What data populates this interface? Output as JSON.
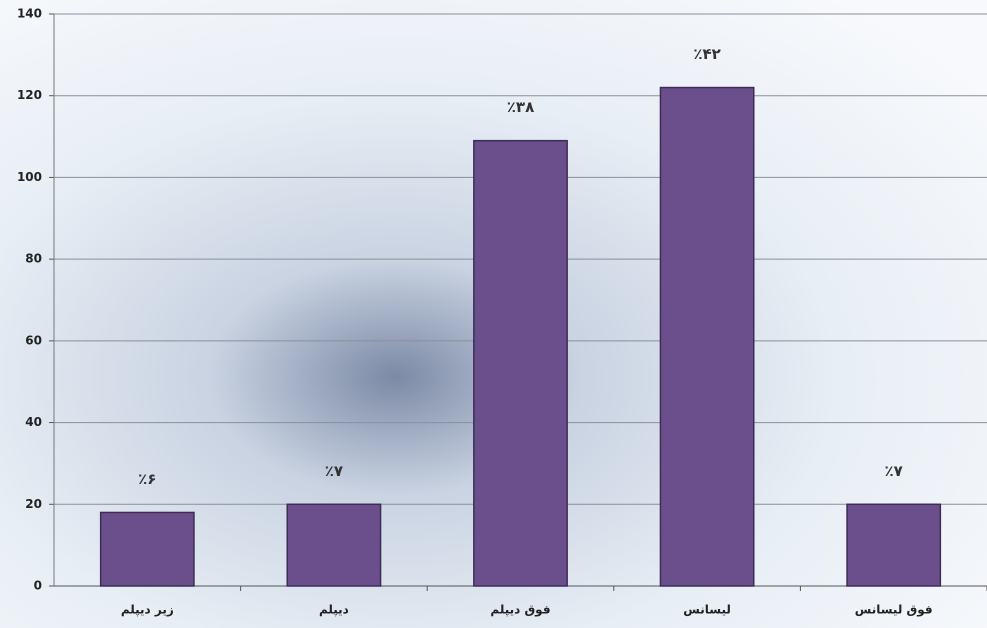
{
  "chart_data": {
    "type": "bar",
    "categories": [
      "زیر دیپلم",
      "دیپلم",
      "فوق دیپلم",
      "لیسانس",
      "فوق لیسانس"
    ],
    "values": [
      18,
      20,
      109,
      122,
      20
    ],
    "annotations": [
      "٪۶",
      "٪۷",
      "٪۳۸",
      "٪۴۲",
      "٪۷"
    ],
    "color": "#6b4f8c",
    "ylim": [
      0,
      140
    ],
    "yticks": [
      0,
      20,
      40,
      60,
      80,
      100,
      120,
      140
    ],
    "grid": true
  }
}
